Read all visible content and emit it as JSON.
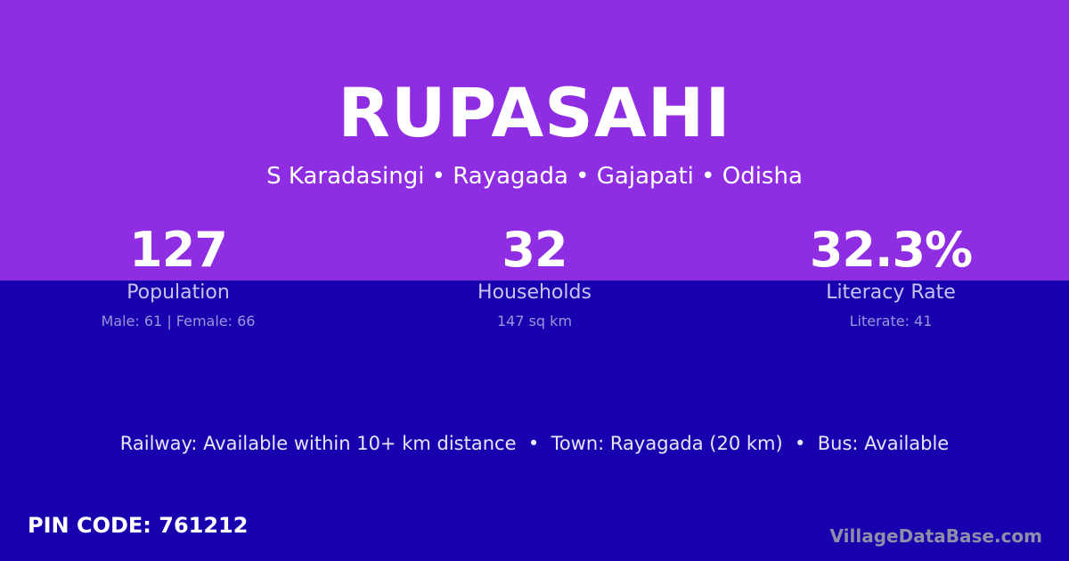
{
  "village": {
    "name": "RUPASAHI",
    "location": "S Karadasingi • Rayagada • Gajapati • Odisha"
  },
  "stats": [
    {
      "value": "127",
      "label": "Population",
      "sub": "Male: 61 | Female: 66"
    },
    {
      "value": "32",
      "label": "Households",
      "sub": "147 sq km"
    },
    {
      "value": "32.3%",
      "label": "Literacy Rate",
      "sub": "Literate: 41"
    }
  ],
  "connectivity": "Railway: Available within 10+ km distance  •  Town: Rayagada (20 km)  •  Bus: Available",
  "pin_code": "PIN CODE: 761212",
  "brand": "VillageDataBase.com",
  "colors": {
    "top": "#8e2de2",
    "bottom": "#1900ae"
  }
}
